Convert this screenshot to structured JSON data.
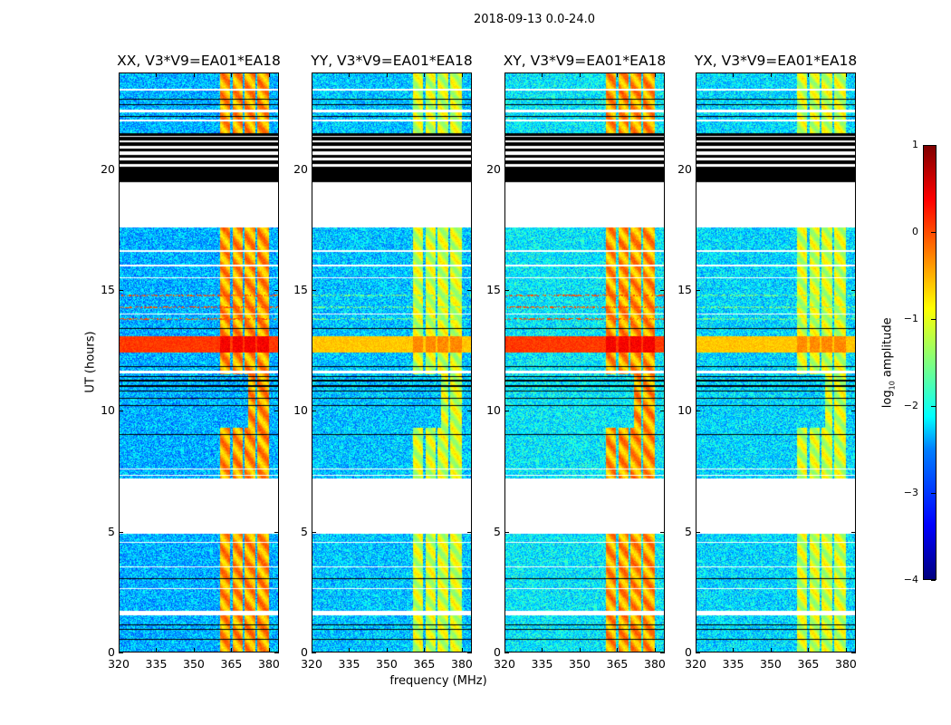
{
  "chart_data": {
    "type": "heatmap",
    "title": "2018-09-13 0.0-24.0",
    "xlabel": "frequency (MHz)",
    "ylabel": "UT (hours)",
    "xlim": [
      320,
      384
    ],
    "ylim": [
      0,
      24
    ],
    "xticks": [
      "320",
      "335",
      "350",
      "365",
      "380"
    ],
    "xtick_values": [
      320,
      335,
      350,
      365,
      380
    ],
    "yticks": [
      "0",
      "5",
      "10",
      "15",
      "20"
    ],
    "ytick_values": [
      0,
      5,
      10,
      15,
      20
    ],
    "colorbar": {
      "label_main": "log",
      "label_sub": "10",
      "label_rest": " amplitude",
      "range": [
        -4,
        1
      ],
      "ticks": [
        "1",
        "0",
        "−1",
        "−2",
        "−3",
        "−4"
      ],
      "tick_values": [
        1,
        0,
        -1,
        -2,
        -3,
        -4
      ],
      "colormap": "jet"
    },
    "panels": [
      {
        "title": "XX, V3*V9=EA01*EA18",
        "background_log_amp": -2.5,
        "band_log_amp": -0.4,
        "rfi_log_amp": 0.4,
        "dotted_rows_log_amp": 0.0
      },
      {
        "title": "YY, V3*V9=EA01*EA18",
        "background_log_amp": -2.4,
        "band_log_amp": -1.1,
        "rfi_log_amp": -0.3,
        "dotted_rows_log_amp": -1.5
      },
      {
        "title": "XY, V3*V9=EA01*EA18",
        "background_log_amp": -2.2,
        "band_log_amp": -0.4,
        "rfi_log_amp": 0.4,
        "dotted_rows_log_amp": 0.0
      },
      {
        "title": "YX, V3*V9=EA01*EA18",
        "background_log_amp": -2.3,
        "band_log_amp": -1.1,
        "rfi_log_amp": -0.3,
        "dotted_rows_log_amp": -1.5
      }
    ],
    "bright_band_mhz": [
      360.5,
      380.5
    ],
    "band_gaps_mhz": [
      [
        364.8,
        365.6
      ],
      [
        369.8,
        370.6
      ],
      [
        374.8,
        375.6
      ]
    ],
    "rfi_rows_hours": [
      [
        12.4,
        13.1
      ]
    ],
    "dotted_rows_hours": [
      13.8,
      14.3,
      14.8
    ],
    "flagged_white_hours": [
      [
        4.9,
        7.2
      ],
      [
        17.6,
        19.5
      ],
      [
        1.5,
        1.7
      ],
      [
        2.6,
        2.65
      ],
      [
        3.5,
        3.55
      ],
      [
        4.5,
        4.55
      ],
      [
        7.3,
        7.35
      ],
      [
        7.55,
        7.6
      ],
      [
        11.55,
        11.65
      ],
      [
        14.0,
        14.05
      ],
      [
        15.5,
        15.55
      ],
      [
        16.0,
        16.05
      ],
      [
        16.6,
        16.65
      ],
      [
        22.0,
        22.1
      ],
      [
        22.4,
        22.5
      ],
      [
        23.3,
        23.35
      ],
      [
        21.5,
        24.0,
        "stripes"
      ]
    ],
    "flagged_black_hours": [
      [
        19.5,
        20.1
      ],
      [
        20.25,
        20.35
      ],
      [
        20.5,
        20.6
      ],
      [
        20.8,
        20.85
      ],
      [
        21.0,
        21.05
      ],
      [
        21.2,
        21.3
      ],
      [
        21.4,
        21.5
      ],
      [
        0.5,
        0.53
      ],
      [
        0.9,
        0.93
      ],
      [
        1.1,
        1.13
      ],
      [
        3.0,
        3.03
      ],
      [
        8.0,
        8.03
      ],
      [
        8.3,
        8.33
      ],
      [
        8.6,
        8.63
      ],
      [
        9.0,
        9.03
      ],
      [
        9.5,
        9.53
      ],
      [
        9.8,
        9.83
      ],
      [
        10.2,
        10.23
      ],
      [
        10.5,
        10.53
      ],
      [
        10.8,
        10.83
      ],
      [
        11.0,
        11.05
      ],
      [
        11.2,
        11.28
      ],
      [
        11.4,
        11.45
      ],
      [
        11.8,
        11.85
      ],
      [
        13.4,
        13.43
      ],
      [
        22.2,
        22.23
      ],
      [
        22.7,
        22.73
      ],
      [
        22.9,
        22.93
      ]
    ]
  }
}
